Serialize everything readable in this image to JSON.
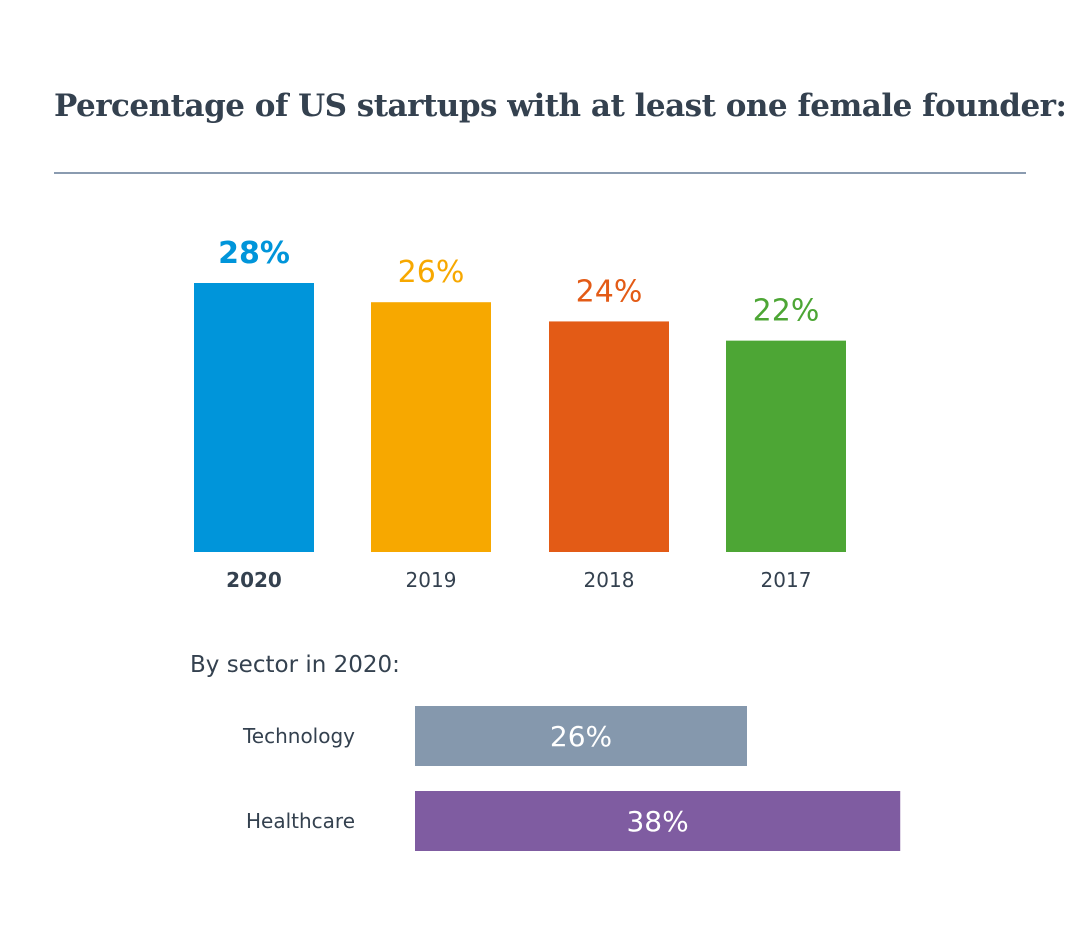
{
  "title": "Percentage of US startups with at least one female founder:",
  "subtitle": "By sector in 2020:",
  "chart_data": [
    {
      "type": "bar",
      "categories": [
        "2020",
        "2019",
        "2018",
        "2017"
      ],
      "values": [
        28,
        26,
        24,
        22
      ],
      "labels": [
        "28%",
        "26%",
        "24%",
        "22%"
      ],
      "colors": [
        "#0095da",
        "#f7a800",
        "#e35b16",
        "#4da635"
      ],
      "highlight": "2020",
      "ylim": [
        0,
        30
      ],
      "grid": false
    },
    {
      "type": "bar",
      "orientation": "horizontal",
      "title": "By sector in 2020:",
      "categories": [
        "Technology",
        "Healthcare"
      ],
      "values": [
        26,
        38
      ],
      "labels": [
        "26%",
        "38%"
      ],
      "colors": [
        "#8598ad",
        "#7f5ca1"
      ],
      "xlim": [
        0,
        40
      ],
      "grid": false
    }
  ]
}
